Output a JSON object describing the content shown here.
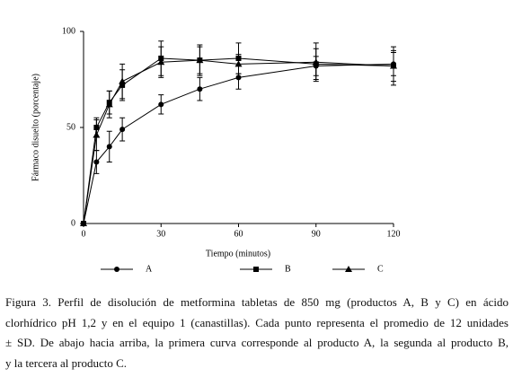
{
  "chart_data": {
    "type": "line",
    "x_label": "Tiempo (minutos)",
    "y_label": "Fármaco disuelto (porcentaje)",
    "x": [
      0,
      5,
      10,
      15,
      30,
      45,
      60,
      90,
      120
    ],
    "xlim": [
      0,
      120
    ],
    "xticks": [
      0,
      30,
      60,
      90,
      120
    ],
    "ylim": [
      0,
      100
    ],
    "yticks": [
      0,
      50,
      100
    ],
    "series": [
      {
        "name": "A",
        "color": "#000000",
        "marker": "circle",
        "values": [
          0,
          32,
          40,
          49,
          62,
          70,
          76,
          82,
          83
        ],
        "errors": [
          0,
          6,
          8,
          6,
          5,
          6,
          6,
          5,
          6
        ]
      },
      {
        "name": "B",
        "color": "#000000",
        "marker": "square",
        "values": [
          0,
          50,
          63,
          72,
          86,
          85,
          86,
          83,
          82
        ],
        "errors": [
          0,
          5,
          6,
          8,
          9,
          8,
          8,
          8,
          10
        ]
      },
      {
        "name": "C",
        "color": "#000000",
        "marker": "triangle",
        "values": [
          0,
          46,
          62,
          74,
          84,
          85,
          83,
          84,
          82
        ],
        "errors": [
          0,
          8,
          7,
          9,
          8,
          7,
          5,
          10,
          8
        ]
      }
    ]
  },
  "caption": [
    "Figura  3. Perfil de disolución de metformina tabletas de 850 mg (productos A, B y C) en ácido",
    "clorhídrico pH 1,2 y en el equipo 1 (canastillas). Cada punto representa el promedio de 12 unidades",
    "± SD. De abajo hacia arriba, la primera curva corresponde al producto A, la segunda al producto B,",
    "y la tercera al producto C."
  ]
}
